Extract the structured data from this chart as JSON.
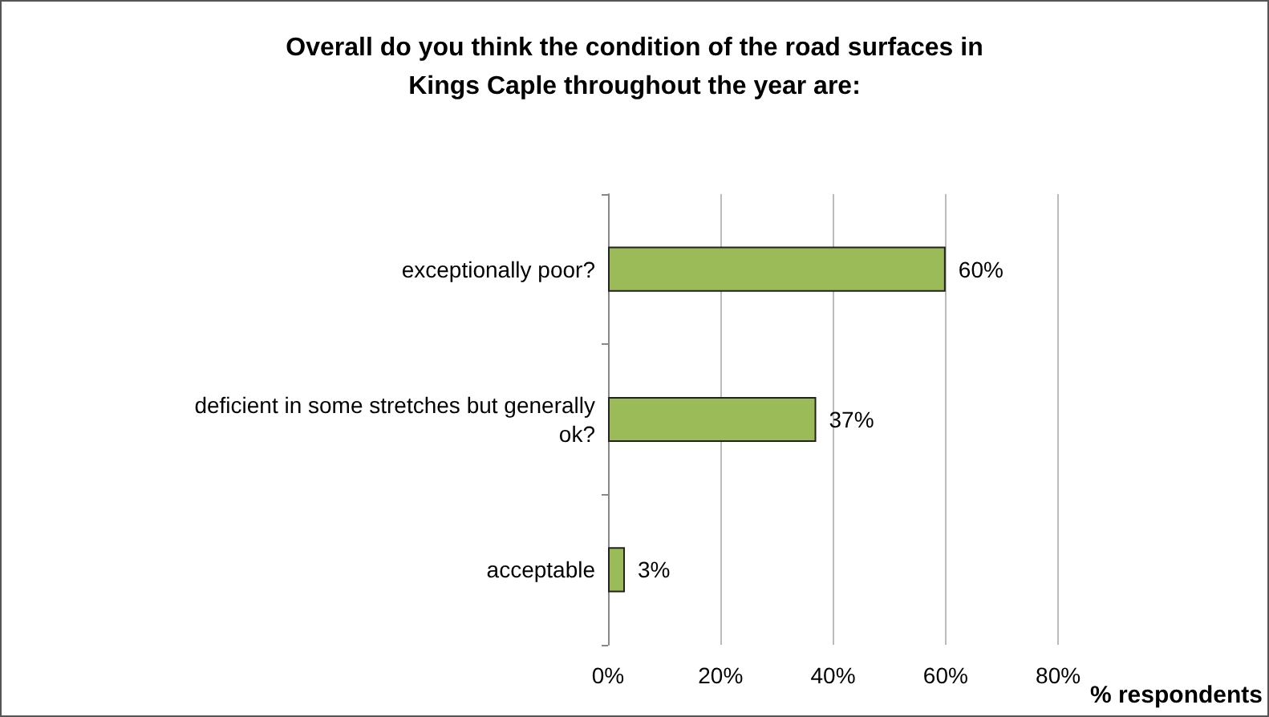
{
  "chart_data": {
    "type": "bar",
    "orientation": "horizontal",
    "title": "Overall do you think the condition of the road surfaces in\nKings Caple throughout the year are:",
    "xlabel": "% respondents",
    "categories": [
      "exceptionally poor?",
      "deficient in some stretches but generally\nok?",
      "acceptable"
    ],
    "values": [
      60,
      37,
      3
    ],
    "color": "#9bbb59",
    "value_labels": [
      "60%",
      "37%",
      "3%"
    ],
    "xlim": [
      0,
      80
    ],
    "xticks": [
      {
        "value": 0,
        "label": "0%"
      },
      {
        "value": 20,
        "label": "20%"
      },
      {
        "value": 40,
        "label": "40%"
      },
      {
        "value": 60,
        "label": "60%"
      },
      {
        "value": 80,
        "label": "80%"
      }
    ],
    "grid": "x"
  }
}
